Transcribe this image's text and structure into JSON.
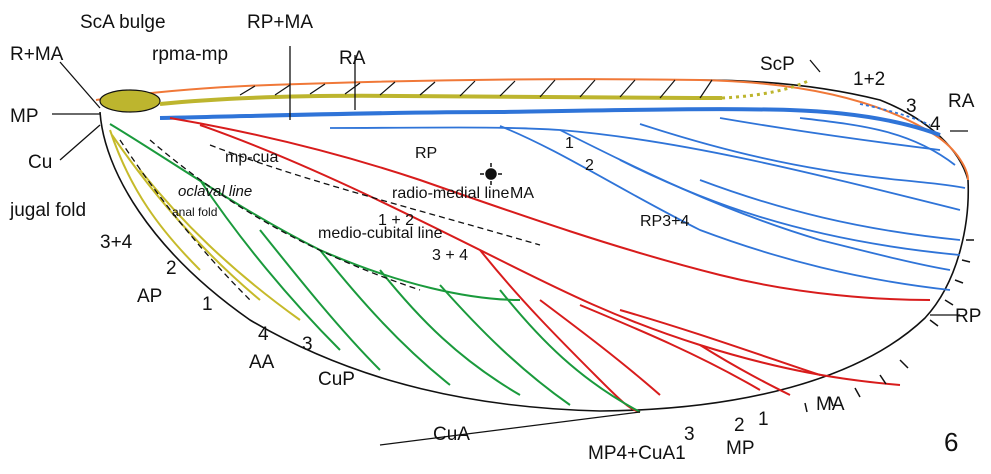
{
  "figure_number": "6",
  "colors": {
    "costa": "#f07838",
    "subcosta": "#bdb52e",
    "radius": "#2f74d8",
    "media": "#d81c1c",
    "cubitus": "#1a9a3c",
    "anal": "#c6ba2a",
    "outline": "#111111"
  },
  "labels": {
    "sca_bulge": "ScA bulge",
    "r_ma": "R+MA",
    "rpma_mp": "rpma-mp",
    "rp_ma": "RP+MA",
    "ra_top": "RA",
    "scp": "ScP",
    "one_plus_two_top": "1+2",
    "three_right": "3",
    "ra_right": "RA",
    "four_right": "4",
    "mp_left": "MP",
    "cu": "Cu",
    "rp_inner": "RP",
    "one_inner": "1",
    "two_inner": "2",
    "mp_cua": "mp-cua",
    "ma_inner": "MA",
    "radio_medial_line": "radio-medial line",
    "oclaval_line": "oclaval line",
    "anal_fold": "anal fold",
    "jugal_fold": "jugal fold",
    "one_plus_two_inner": "1 + 2",
    "rp3_4": "RP3+4",
    "medio_cubital_line": "medio-cubital line",
    "three_plus_four_inner": "3 + 4",
    "three_plus_four_left": "3+4",
    "two_left": "2",
    "ap": "AP",
    "one_left": "1",
    "four_bottom": "4",
    "aa": "AA",
    "three_bottom": "3",
    "cup": "CuP",
    "cua": "CuA",
    "mp4_cua1": "MP4+CuA1",
    "three_mp": "3",
    "two_mp": "2",
    "one_mp": "1",
    "mp_bottom": "MP",
    "ma_bottom": "MA",
    "rp_right": "RP"
  }
}
